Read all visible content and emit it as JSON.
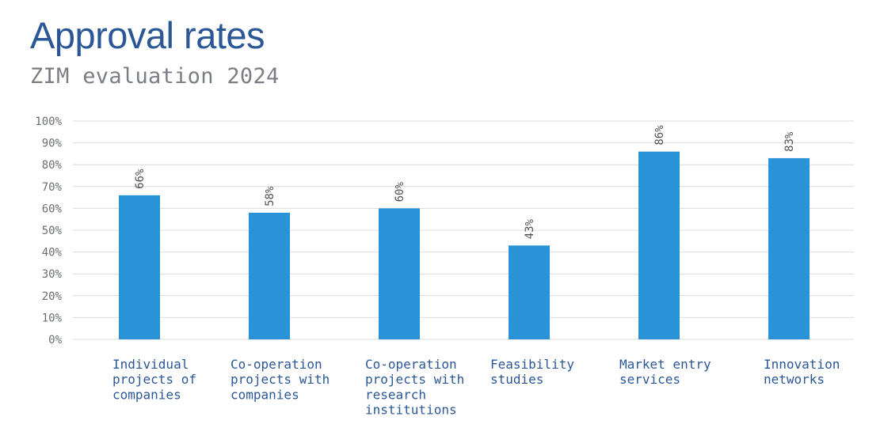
{
  "chart_data": {
    "type": "bar",
    "title": "Approval rates",
    "subtitle": "ZIM evaluation 2024",
    "categories": [
      [
        "Individual",
        "projects of",
        "companies"
      ],
      [
        "Co-operation",
        "projects with",
        "companies"
      ],
      [
        "Co-operation",
        "projects with",
        "research",
        "institutions"
      ],
      [
        "Feasibility",
        "studies"
      ],
      [
        "Market entry",
        "services"
      ],
      [
        "Innovation",
        "networks"
      ]
    ],
    "values": [
      66,
      58,
      60,
      43,
      86,
      83
    ],
    "value_labels": [
      "66%",
      "58%",
      "60%",
      "43%",
      "86%",
      "83%"
    ],
    "y_ticks": [
      "0%",
      "10%",
      "20%",
      "30%",
      "40%",
      "50%",
      "60%",
      "70%",
      "80%",
      "90%",
      "100%"
    ],
    "ylim": [
      0,
      100
    ],
    "xlabel": "",
    "ylabel": "",
    "grid": true,
    "legend": "none",
    "colors": {
      "bar": "#2a92d6",
      "title": "#2b5797",
      "subtitle": "#7a7e84",
      "category_label": "#2b5797",
      "grid": "#dcdcdc"
    }
  }
}
